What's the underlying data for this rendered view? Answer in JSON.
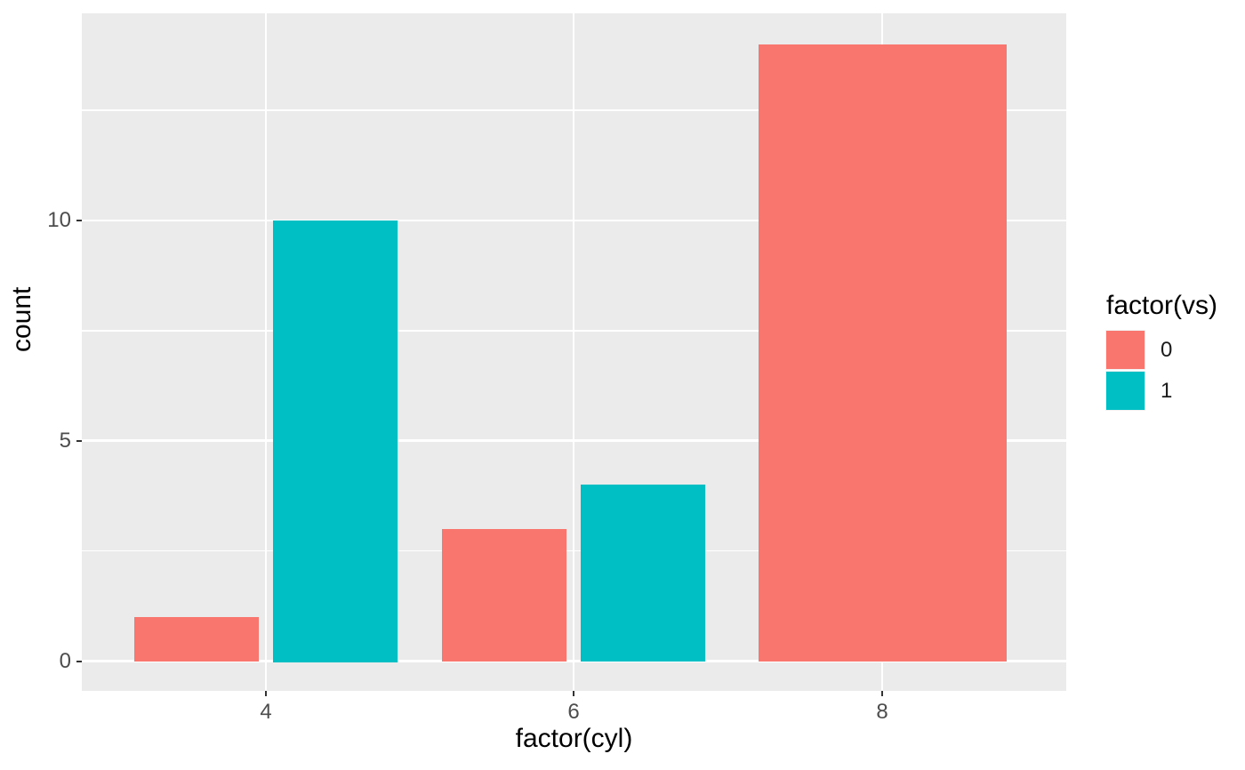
{
  "chart_data": {
    "type": "bar",
    "title": "",
    "xlabel": "factor(cyl)",
    "ylabel": "count",
    "legend_title": "factor(vs)",
    "legend_position": "right",
    "bar_layout": "dodge",
    "grid": true,
    "categories": [
      "4",
      "6",
      "8"
    ],
    "series": [
      {
        "name": "0",
        "color": "#F8766D",
        "values": [
          1,
          3,
          14
        ]
      },
      {
        "name": "1",
        "color": "#00BFC4",
        "values": [
          10,
          4,
          0
        ]
      }
    ],
    "y_major_ticks": [
      0,
      5,
      10
    ],
    "y_minor_ticks": [
      2.5,
      7.5,
      12.5
    ],
    "ylim": [
      0,
      14.7
    ],
    "colors": {
      "panel_background": "#EBEBEB",
      "gridline": "#FFFFFF",
      "tick_label_text": "#4D4D4D",
      "tick_mark": "#333333",
      "axis_title_text": "#000000"
    }
  }
}
